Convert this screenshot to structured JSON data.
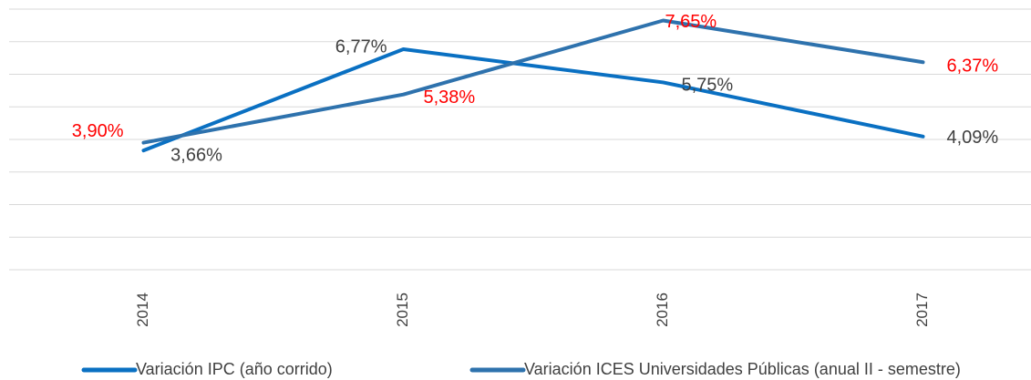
{
  "chart_data": {
    "type": "line",
    "categories": [
      "2014",
      "2015",
      "2016",
      "2017"
    ],
    "series": [
      {
        "name": "Variación IPC (año corrido)",
        "color": "#0a70c2",
        "label_color": "#404040",
        "values": [
          3.66,
          6.77,
          5.75,
          4.09
        ],
        "value_labels": [
          "3,66%",
          "6,77%",
          "5,75%",
          "4,09%"
        ]
      },
      {
        "name": "Variación ICES Universidades Públicas (anual II - semestre)",
        "color": "#2e72ad",
        "label_color": "#ff0000",
        "values": [
          3.9,
          5.38,
          7.65,
          6.37
        ],
        "value_labels": [
          "3,90%",
          "5,38%",
          "7,65%",
          "6,37%"
        ]
      }
    ],
    "ylim": [
      0,
      8
    ],
    "yticks": [
      0,
      1,
      2,
      3,
      4,
      5,
      6,
      7,
      8
    ],
    "grid": true,
    "legend": "bottom"
  }
}
